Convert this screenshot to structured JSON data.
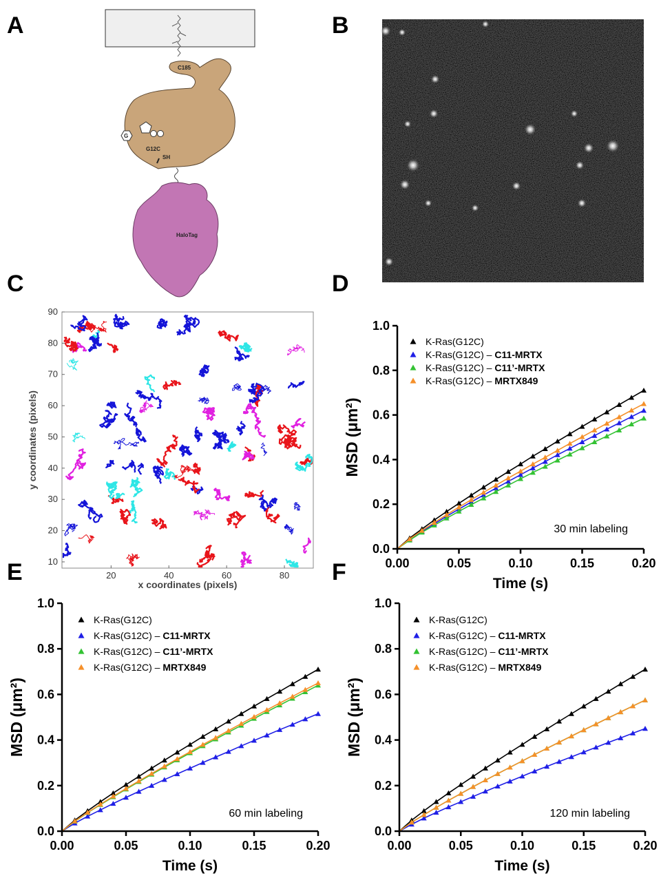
{
  "panel_labels": [
    "A",
    "B",
    "C",
    "D",
    "E",
    "F"
  ],
  "diagram": {
    "labels": [
      "C185",
      "G",
      "G12C",
      "SH",
      "HaloTag"
    ]
  },
  "chart_data": [
    {
      "type": "trajectories",
      "xlabel": "x coordinates (pixels)",
      "ylabel": "y coordinates (pixels)",
      "xlim": [
        3,
        90
      ],
      "ylim": [
        8,
        90
      ],
      "xticks": [
        20,
        40,
        60,
        80
      ],
      "yticks": [
        10,
        20,
        30,
        40,
        50,
        60,
        70,
        80,
        90
      ]
    },
    {
      "type": "line",
      "xlabel": "Time (s)",
      "ylabel": "MSD (μm²)",
      "annotation": "30 min labeling",
      "xlim": [
        0,
        0.2
      ],
      "ylim": [
        0,
        1
      ],
      "xticks": [
        {
          "value": 0,
          "label": "0.00"
        },
        {
          "value": 0.05,
          "label": "0.05"
        },
        {
          "value": 0.1,
          "label": "0.10"
        },
        {
          "value": 0.15,
          "label": "0.15"
        },
        {
          "value": 0.2,
          "label": "0.20"
        }
      ],
      "yticks": [
        {
          "value": 0,
          "label": "0.0"
        },
        {
          "value": 0.2,
          "label": "0.2"
        },
        {
          "value": 0.4,
          "label": "0.4"
        },
        {
          "value": 0.6,
          "label": "0.6"
        },
        {
          "value": 0.8,
          "label": "0.8"
        },
        {
          "value": 1,
          "label": "1.0"
        }
      ],
      "x": [
        0,
        0.01,
        0.02,
        0.03,
        0.04,
        0.05,
        0.06,
        0.07,
        0.08,
        0.09,
        0.1,
        0.11,
        0.12,
        0.13,
        0.14,
        0.15,
        0.16,
        0.17,
        0.18,
        0.19,
        0.2
      ],
      "series": [
        {
          "name": "K-Ras(G12C)",
          "color": "#000000",
          "values": [
            0,
            0.048,
            0.089,
            0.129,
            0.167,
            0.204,
            0.24,
            0.276,
            0.311,
            0.346,
            0.38,
            0.415,
            0.448,
            0.482,
            0.515,
            0.548,
            0.581,
            0.613,
            0.646,
            0.678,
            0.71
          ]
        },
        {
          "name": "K-Ras(G12C) – C11-MRTX",
          "color": "#1f1fe6",
          "values": [
            0,
            0.042,
            0.078,
            0.112,
            0.146,
            0.178,
            0.21,
            0.241,
            0.272,
            0.302,
            0.332,
            0.362,
            0.391,
            0.421,
            0.45,
            0.479,
            0.507,
            0.536,
            0.564,
            0.592,
            0.62
          ]
        },
        {
          "name": "K-Ras(G12C) – C11’-MRTX",
          "color": "#33c233",
          "values": [
            0,
            0.039,
            0.074,
            0.106,
            0.137,
            0.168,
            0.198,
            0.227,
            0.256,
            0.285,
            0.314,
            0.342,
            0.369,
            0.397,
            0.424,
            0.452,
            0.479,
            0.505,
            0.532,
            0.559,
            0.585
          ]
        },
        {
          "name": "K-Ras(G12C) – MRTX849",
          "color": "#f5902a",
          "values": [
            0,
            0.044,
            0.082,
            0.118,
            0.153,
            0.187,
            0.22,
            0.253,
            0.285,
            0.317,
            0.348,
            0.38,
            0.41,
            0.441,
            0.472,
            0.502,
            0.532,
            0.562,
            0.591,
            0.621,
            0.65
          ]
        }
      ]
    },
    {
      "type": "line",
      "xlabel": "Time (s)",
      "ylabel": "MSD (μm²)",
      "annotation": "60 min labeling",
      "xlim": [
        0,
        0.2
      ],
      "ylim": [
        0,
        1
      ],
      "xticks": [
        {
          "value": 0,
          "label": "0.00"
        },
        {
          "value": 0.05,
          "label": "0.05"
        },
        {
          "value": 0.1,
          "label": "0.10"
        },
        {
          "value": 0.15,
          "label": "0.15"
        },
        {
          "value": 0.2,
          "label": "0.20"
        }
      ],
      "yticks": [
        {
          "value": 0,
          "label": "0.0"
        },
        {
          "value": 0.2,
          "label": "0.2"
        },
        {
          "value": 0.4,
          "label": "0.4"
        },
        {
          "value": 0.6,
          "label": "0.6"
        },
        {
          "value": 0.8,
          "label": "0.8"
        },
        {
          "value": 1,
          "label": "1.0"
        }
      ],
      "x": [
        0,
        0.01,
        0.02,
        0.03,
        0.04,
        0.05,
        0.06,
        0.07,
        0.08,
        0.09,
        0.1,
        0.11,
        0.12,
        0.13,
        0.14,
        0.15,
        0.16,
        0.17,
        0.18,
        0.19,
        0.2
      ],
      "series": [
        {
          "name": "K-Ras(G12C)",
          "color": "#000000",
          "values": [
            0,
            0.048,
            0.089,
            0.129,
            0.167,
            0.204,
            0.24,
            0.276,
            0.311,
            0.346,
            0.38,
            0.415,
            0.448,
            0.482,
            0.515,
            0.548,
            0.581,
            0.613,
            0.646,
            0.678,
            0.71
          ]
        },
        {
          "name": "K-Ras(G12C) – C11-MRTX",
          "color": "#1f1fe6",
          "values": [
            0,
            0.035,
            0.065,
            0.093,
            0.121,
            0.148,
            0.174,
            0.2,
            0.226,
            0.251,
            0.276,
            0.301,
            0.325,
            0.349,
            0.374,
            0.398,
            0.421,
            0.445,
            0.468,
            0.492,
            0.515
          ]
        },
        {
          "name": "K-Ras(G12C) – C11’-MRTX",
          "color": "#33c233",
          "values": [
            0,
            0.043,
            0.081,
            0.116,
            0.15,
            0.184,
            0.217,
            0.249,
            0.281,
            0.312,
            0.343,
            0.374,
            0.404,
            0.434,
            0.464,
            0.494,
            0.524,
            0.553,
            0.582,
            0.611,
            0.64
          ]
        },
        {
          "name": "K-Ras(G12C) – MRTX849",
          "color": "#f5902a",
          "values": [
            0,
            0.044,
            0.082,
            0.118,
            0.153,
            0.187,
            0.22,
            0.253,
            0.285,
            0.317,
            0.348,
            0.38,
            0.41,
            0.441,
            0.472,
            0.502,
            0.532,
            0.562,
            0.591,
            0.621,
            0.65
          ]
        }
      ]
    },
    {
      "type": "line",
      "xlabel": "Time (s)",
      "ylabel": "MSD (μm²)",
      "annotation": "120 min labeling",
      "xlim": [
        0,
        0.2
      ],
      "ylim": [
        0,
        1
      ],
      "xticks": [
        {
          "value": 0,
          "label": "0.00"
        },
        {
          "value": 0.05,
          "label": "0.05"
        },
        {
          "value": 0.1,
          "label": "0.10"
        },
        {
          "value": 0.15,
          "label": "0.15"
        },
        {
          "value": 0.2,
          "label": "0.20"
        }
      ],
      "yticks": [
        {
          "value": 0,
          "label": "0.0"
        },
        {
          "value": 0.2,
          "label": "0.2"
        },
        {
          "value": 0.4,
          "label": "0.4"
        },
        {
          "value": 0.6,
          "label": "0.6"
        },
        {
          "value": 0.8,
          "label": "0.8"
        },
        {
          "value": 1,
          "label": "1.0"
        }
      ],
      "x": [
        0,
        0.01,
        0.02,
        0.03,
        0.04,
        0.05,
        0.06,
        0.07,
        0.08,
        0.09,
        0.1,
        0.11,
        0.12,
        0.13,
        0.14,
        0.15,
        0.16,
        0.17,
        0.18,
        0.19,
        0.2
      ],
      "series": [
        {
          "name": "K-Ras(G12C)",
          "color": "#000000",
          "values": [
            0,
            0.048,
            0.089,
            0.129,
            0.167,
            0.204,
            0.24,
            0.276,
            0.311,
            0.346,
            0.38,
            0.415,
            0.448,
            0.482,
            0.515,
            0.548,
            0.581,
            0.613,
            0.646,
            0.678,
            0.71
          ]
        },
        {
          "name": "K-Ras(G12C) – C11-MRTX",
          "color": "#1f1fe6",
          "values": [
            0,
            0.03,
            0.057,
            0.082,
            0.106,
            0.129,
            0.152,
            0.175,
            0.197,
            0.219,
            0.241,
            0.263,
            0.284,
            0.305,
            0.326,
            0.347,
            0.368,
            0.389,
            0.409,
            0.43,
            0.45
          ]
        },
        {
          "name": "K-Ras(G12C) – C11’-MRTX",
          "color": "#33c233",
          "values": [
            0,
            0.039,
            0.072,
            0.104,
            0.135,
            0.165,
            0.195,
            0.224,
            0.252,
            0.28,
            0.308,
            0.336,
            0.363,
            0.39,
            0.417,
            0.444,
            0.47,
            0.497,
            0.523,
            0.549,
            0.575
          ]
        },
        {
          "name": "K-Ras(G12C) – MRTX849",
          "color": "#f5902a",
          "values": [
            0,
            0.039,
            0.072,
            0.104,
            0.135,
            0.165,
            0.195,
            0.224,
            0.252,
            0.28,
            0.308,
            0.336,
            0.363,
            0.39,
            0.417,
            0.444,
            0.47,
            0.497,
            0.523,
            0.549,
            0.575
          ]
        }
      ]
    }
  ]
}
